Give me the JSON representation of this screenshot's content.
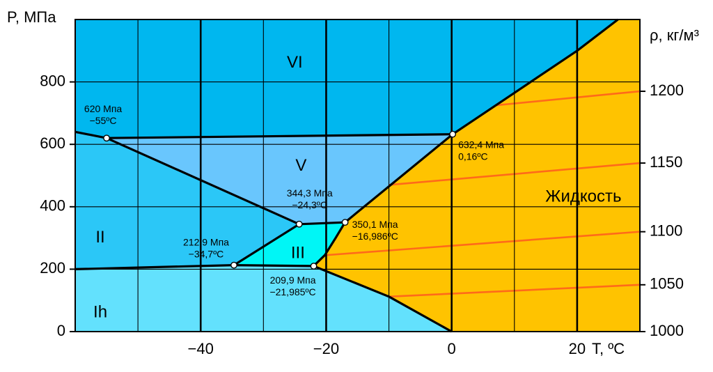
{
  "chart_data": {
    "type": "phase-diagram",
    "title": "",
    "xlabel": "T, ºC",
    "ylabel": "P, МПа",
    "y2label": "ρ, кг/м³",
    "xlim": [
      -60,
      30
    ],
    "ylim": [
      0,
      1000
    ],
    "x_ticks": [
      {
        "v": -40,
        "label": "−40"
      },
      {
        "v": -20,
        "label": "−20"
      },
      {
        "v": 0,
        "label": "0"
      },
      {
        "v": 20,
        "label": "20"
      }
    ],
    "y_ticks": [
      {
        "v": 0,
        "label": "0"
      },
      {
        "v": 200,
        "label": "200"
      },
      {
        "v": 400,
        "label": "400"
      },
      {
        "v": 600,
        "label": "600"
      },
      {
        "v": 800,
        "label": "800"
      }
    ],
    "x_grid": [
      -50,
      -40,
      -30,
      -20,
      -10,
      0,
      10,
      20
    ],
    "x_grid_bold": [
      -40,
      -20,
      0,
      20
    ],
    "y_grid": [
      200,
      400,
      600,
      800
    ],
    "y2_ticks": [
      {
        "label": "1000",
        "p": 0
      },
      {
        "label": "1050",
        "p": 150
      },
      {
        "label": "1100",
        "p": 320
      },
      {
        "label": "1150",
        "p": 540
      },
      {
        "label": "1200",
        "p": 770
      }
    ],
    "phases": [
      {
        "name": "Ih",
        "label": "Ih",
        "color": "#63e1fd",
        "label_at": [
          -56,
          60
        ],
        "polygon": [
          [
            -60,
            0
          ],
          [
            0,
            0
          ],
          [
            -10,
            112
          ],
          [
            -22,
            210
          ],
          [
            -34.7,
            212.9
          ],
          [
            -60,
            200
          ]
        ]
      },
      {
        "name": "II",
        "label": "II",
        "color": "#2bc7f7",
        "label_at": [
          -56,
          300
        ],
        "polygon": [
          [
            -60,
            200
          ],
          [
            -34.7,
            212.9
          ],
          [
            -24.3,
            344.3
          ],
          [
            -55,
            620
          ],
          [
            -60,
            640
          ]
        ]
      },
      {
        "name": "III",
        "label": "III",
        "color": "#00f6f6",
        "label_at": [
          -24.5,
          250
        ],
        "polygon": [
          [
            -34.7,
            212.9
          ],
          [
            -22,
            210
          ],
          [
            -20.2,
            245
          ],
          [
            -18.5,
            300
          ],
          [
            -17,
            350.1
          ],
          [
            -24.3,
            344.3
          ]
        ]
      },
      {
        "name": "V",
        "label": "V",
        "color": "#69c6fd",
        "label_at": [
          -24,
          530
        ],
        "polygon": [
          [
            -55,
            620
          ],
          [
            0.16,
            632.4
          ],
          [
            -17,
            350.1
          ],
          [
            -24.3,
            344.3
          ]
        ]
      },
      {
        "name": "VI",
        "label": "VI",
        "color": "#00b7ef",
        "label_at": [
          -25,
          860
        ],
        "polygon": [
          [
            -60,
            640
          ],
          [
            -55,
            620
          ],
          [
            0.16,
            632.4
          ],
          [
            10,
            765
          ],
          [
            20,
            900
          ],
          [
            26.5,
            1000
          ],
          [
            -60,
            1000
          ]
        ]
      },
      {
        "name": "liquid",
        "label": "Жидкость",
        "color": "#ffc300",
        "label_at": [
          21,
          430
        ],
        "polygon": [
          [
            0,
            0
          ],
          [
            -10,
            112
          ],
          [
            -22,
            210
          ],
          [
            -20.2,
            245
          ],
          [
            -18.5,
            300
          ],
          [
            -17,
            350.1
          ],
          [
            0.16,
            632.4
          ],
          [
            10,
            765
          ],
          [
            20,
            900
          ],
          [
            26.5,
            1000
          ],
          [
            30,
            1000
          ],
          [
            30,
            0
          ]
        ]
      }
    ],
    "boundaries": [
      {
        "name": "Ih-liquid",
        "points": [
          [
            0,
            0
          ],
          [
            -10,
            112
          ],
          [
            -22,
            210
          ]
        ]
      },
      {
        "name": "Ih-upper",
        "points": [
          [
            -60,
            200
          ],
          [
            -34.7,
            212.9
          ],
          [
            -22,
            210
          ]
        ]
      },
      {
        "name": "II-VI",
        "points": [
          [
            -60,
            640
          ],
          [
            -55,
            620
          ]
        ]
      },
      {
        "name": "II-V-III",
        "points": [
          [
            -55,
            620
          ],
          [
            -24.3,
            344.3
          ],
          [
            -34.7,
            212.9
          ]
        ]
      },
      {
        "name": "III-V",
        "points": [
          [
            -24.3,
            344.3
          ],
          [
            -17,
            350.1
          ]
        ]
      },
      {
        "name": "III-liquid",
        "points": [
          [
            -22,
            210
          ],
          [
            -20.2,
            245
          ],
          [
            -18.5,
            300
          ],
          [
            -17,
            350.1
          ]
        ]
      },
      {
        "name": "V-liquid",
        "points": [
          [
            -17,
            350.1
          ],
          [
            0.16,
            632.4
          ]
        ]
      },
      {
        "name": "V-VI",
        "points": [
          [
            -55,
            620
          ],
          [
            0.16,
            632.4
          ]
        ]
      },
      {
        "name": "VI-liquid",
        "points": [
          [
            0.16,
            632.4
          ],
          [
            10,
            765
          ],
          [
            20,
            900
          ],
          [
            26.5,
            1000
          ]
        ]
      }
    ],
    "isochores": [
      {
        "density": "1050",
        "points": [
          [
            -10,
            112
          ],
          [
            30,
            150
          ]
        ]
      },
      {
        "density": "1100",
        "points": [
          [
            -20,
            245
          ],
          [
            30,
            320
          ]
        ]
      },
      {
        "density": "1150",
        "points": [
          [
            -10,
            470
          ],
          [
            30,
            540
          ]
        ]
      },
      {
        "density": "1200",
        "points": [
          [
            7,
            725
          ],
          [
            30,
            770
          ]
        ]
      }
    ],
    "points": [
      {
        "name": "triple-ii-vi-v",
        "t": -55,
        "p": 620,
        "label": [
          "620 Мпа",
          "−55ºC"
        ],
        "anchor": "middle",
        "dx": -5,
        "dy": -37
      },
      {
        "name": "triple-ih-ii-iii",
        "t": -34.7,
        "p": 212.9,
        "label": [
          "212,9 Мпа",
          "−34,7ºC"
        ],
        "anchor": "middle",
        "dx": -40,
        "dy": -28
      },
      {
        "name": "triple-ii-iii-v",
        "t": -24.3,
        "p": 344.3,
        "label": [
          "344,3 Мпа",
          "−24,3ºC"
        ],
        "anchor": "middle",
        "dx": 15,
        "dy": -40
      },
      {
        "name": "triple-ih-iii-liquid",
        "t": -21.985,
        "p": 209.9,
        "label": [
          "209,9 Мпа",
          "−21,985ºC"
        ],
        "anchor": "middle",
        "dx": -30,
        "dy": 25
      },
      {
        "name": "triple-iii-v-liquid",
        "t": -16.986,
        "p": 350.1,
        "label": [
          "350,1 Мпа",
          "−16,986ºC"
        ],
        "anchor": "start",
        "dx": 10,
        "dy": 8
      },
      {
        "name": "triple-v-vi-liquid",
        "t": 0.16,
        "p": 632.4,
        "label": [
          "632,4 Мпа",
          "0,16ºC"
        ],
        "anchor": "start",
        "dx": 8,
        "dy": 20
      }
    ]
  }
}
